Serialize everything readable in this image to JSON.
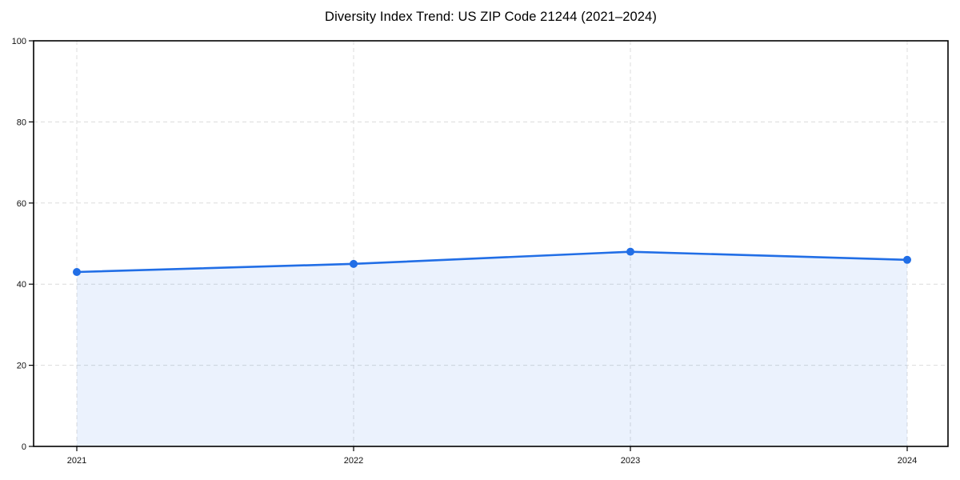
{
  "chart_data": {
    "type": "area",
    "title": "Diversity Index Trend: US ZIP Code 21244 (2021–2024)",
    "x": [
      "2021",
      "2022",
      "2023",
      "2024"
    ],
    "series": [
      {
        "name": "Diversity Index",
        "values": [
          43,
          45,
          48,
          46
        ]
      }
    ],
    "xlabel": "",
    "ylabel": "",
    "ylim": [
      0,
      100
    ],
    "yticks": [
      0,
      20,
      40,
      60,
      80,
      100
    ],
    "grid": true,
    "grid_style": "dashed",
    "legend_position": "none",
    "marker": "circle",
    "colors": {
      "line": "#216ee6",
      "marker": "#216ee6",
      "fill": "#216ee6",
      "fill_opacity": 0.09,
      "grid": "#dcdcdc",
      "frame": "#000000",
      "text": "#111111",
      "background": "#ffffff"
    }
  }
}
